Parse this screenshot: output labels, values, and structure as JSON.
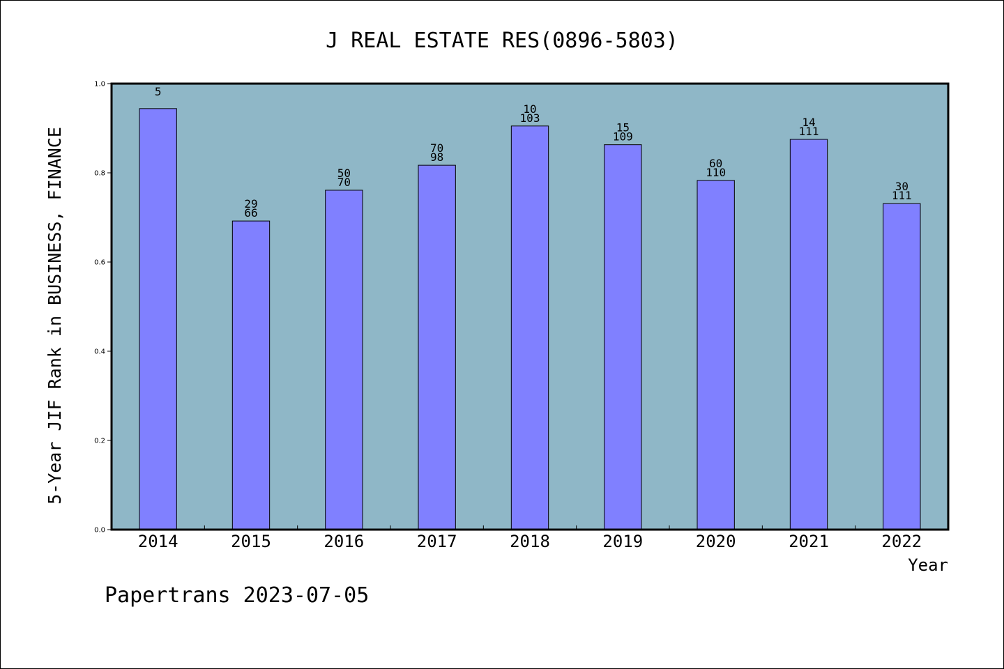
{
  "chart_data": {
    "type": "bar",
    "title": "J REAL ESTATE RES(0896-5803)",
    "xlabel": "Year",
    "ylabel": "5-Year JIF Rank in BUSINESS, FINANCE",
    "categories": [
      "2014",
      "2015",
      "2016",
      "2017",
      "2018",
      "2019",
      "2020",
      "2021",
      "2022"
    ],
    "values": [
      0.944,
      0.692,
      0.761,
      0.817,
      0.905,
      0.863,
      0.783,
      0.875,
      0.731
    ],
    "data_labels": [
      [
        "5"
      ],
      [
        "29",
        "66"
      ],
      [
        "50",
        "70"
      ],
      [
        "70",
        "98"
      ],
      [
        "10",
        "103"
      ],
      [
        "15",
        "109"
      ],
      [
        "60",
        "110"
      ],
      [
        "14",
        "111"
      ],
      [
        "30",
        "111"
      ]
    ],
    "ylim": [
      0,
      1.0
    ],
    "yticks": [
      0,
      0.2,
      0.4,
      0.6,
      0.8,
      1.0
    ],
    "ytick_labels": [
      "0.0",
      "0.2",
      "0.4",
      "0.6",
      "0.8",
      "1.0"
    ],
    "grid": false,
    "colors": {
      "bar": "#8080ff",
      "bar_edge": "#000000",
      "plot_background": "#8fb7c7",
      "axes": "#000000"
    }
  },
  "footer": "Papertrans 2023-07-05"
}
